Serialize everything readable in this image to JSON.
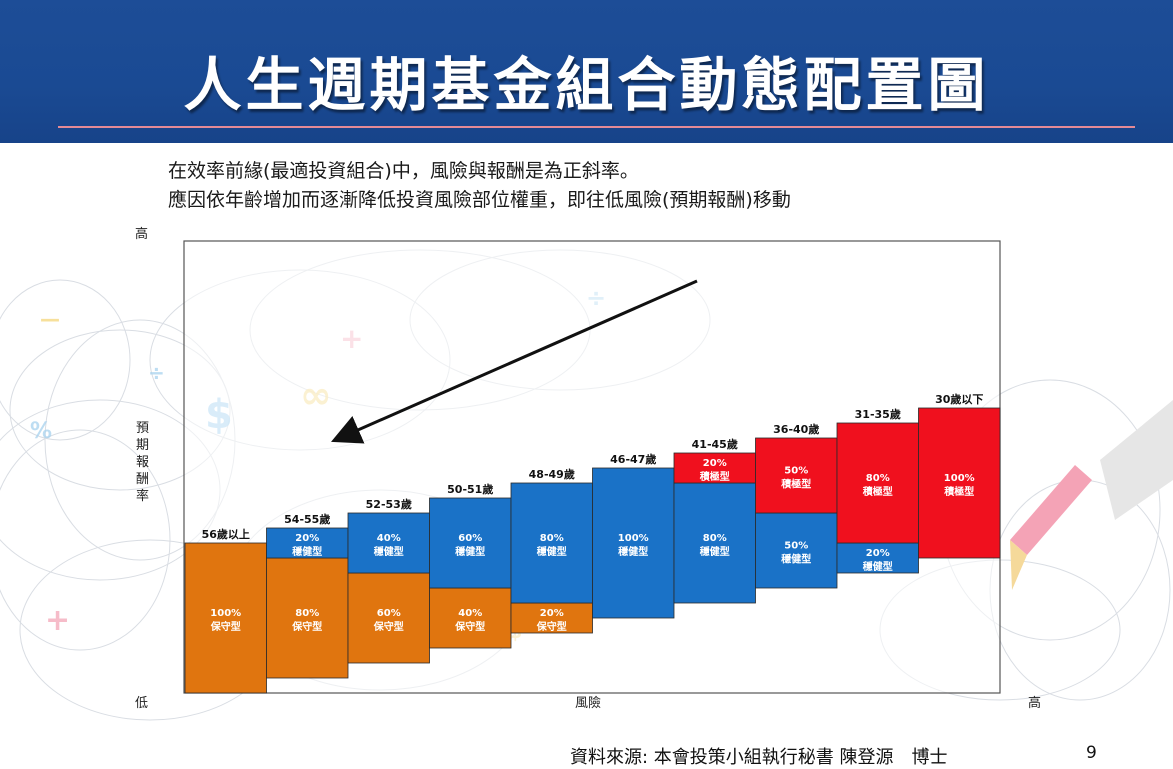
{
  "header": {
    "title": "人生週期基金組合動態配置圖"
  },
  "intro": {
    "line1": "在效率前緣(最適投資組合)中，風險與報酬是為正斜率。",
    "line2": "應因依年齡增加而逐漸降低投資風險部位權重，即往低風險(預期報酬)移動"
  },
  "footer": {
    "source": "資料來源: 本會投策小組執行秘書 陳登源　博士",
    "page": "9"
  },
  "chart_data": {
    "type": "bar",
    "stacked": true,
    "ylabel": "預期報酬率",
    "xlabel": "風險",
    "y_high_label": "高",
    "origin_label": "低",
    "x_high_label": "高",
    "categories": [
      "56歲以上",
      "54-55歲",
      "52-53歲",
      "50-51歲",
      "48-49歲",
      "46-47歲",
      "41-45歲",
      "36-40歲",
      "31-35歲",
      "30歲以下"
    ],
    "series": [
      {
        "name": "保守型",
        "color": "#e0750f",
        "values": [
          100,
          80,
          60,
          40,
          20,
          0,
          0,
          0,
          0,
          0
        ],
        "labels": [
          "100%",
          "80%",
          "60%",
          "40%",
          "20%",
          "",
          "",
          "",
          "",
          ""
        ]
      },
      {
        "name": "穩健型",
        "color": "#1a72c7",
        "values": [
          0,
          20,
          40,
          60,
          80,
          100,
          80,
          50,
          20,
          0
        ],
        "labels": [
          "",
          "20%",
          "40%",
          "60%",
          "80%",
          "100%",
          "80%",
          "50%",
          "20%",
          ""
        ]
      },
      {
        "name": "積極型",
        "color": "#f0101e",
        "values": [
          0,
          0,
          0,
          0,
          0,
          0,
          20,
          50,
          80,
          100
        ],
        "labels": [
          "",
          "",
          "",
          "",
          "",
          "",
          "20%",
          "50%",
          "80%",
          "100%"
        ]
      }
    ],
    "legend": "none",
    "arrow": "high-right to low-left"
  }
}
